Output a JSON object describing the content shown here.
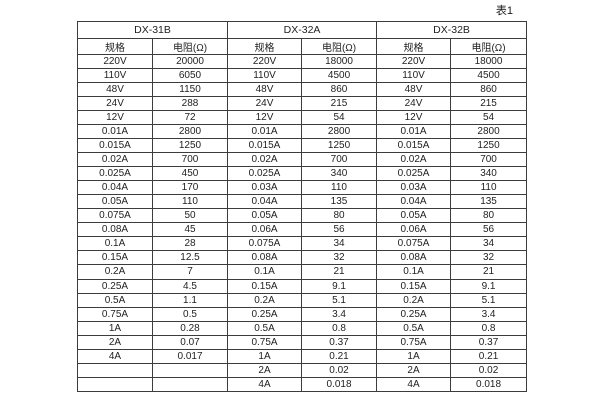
{
  "page": {
    "caption": "表1",
    "background": "#ffffff",
    "text_color": "#1f1f1f",
    "border_color": "#3c3c3c"
  },
  "table": {
    "body_row_count": 24,
    "groups": [
      {
        "name": "DX-31B",
        "columns": [
          "规格",
          "电阻(Ω)"
        ],
        "rows": [
          [
            "220V",
            "20000"
          ],
          [
            "110V",
            "6050"
          ],
          [
            "48V",
            "1150"
          ],
          [
            "24V",
            "288"
          ],
          [
            "12V",
            "72"
          ],
          [
            "0.01A",
            "2800"
          ],
          [
            "0.015A",
            "1250"
          ],
          [
            "0.02A",
            "700"
          ],
          [
            "0.025A",
            "450"
          ],
          [
            "0.04A",
            "170"
          ],
          [
            "0.05A",
            "110"
          ],
          [
            "0.075A",
            "50"
          ],
          [
            "0.08A",
            "45"
          ],
          [
            "0.1A",
            "28"
          ],
          [
            "0.15A",
            "12.5"
          ],
          [
            "0.2A",
            "7"
          ],
          [
            "0.25A",
            "4.5"
          ],
          [
            "0.5A",
            "1.1"
          ],
          [
            "0.75A",
            "0.5"
          ],
          [
            "1A",
            "0.28"
          ],
          [
            "2A",
            "0.07"
          ],
          [
            "4A",
            "0.017"
          ],
          [
            "",
            ""
          ],
          [
            "",
            ""
          ]
        ]
      },
      {
        "name": "DX-32A",
        "columns": [
          "规格",
          "电阻(Ω)"
        ],
        "rows": [
          [
            "220V",
            "18000"
          ],
          [
            "110V",
            "4500"
          ],
          [
            "48V",
            "860"
          ],
          [
            "24V",
            "215"
          ],
          [
            "12V",
            "54"
          ],
          [
            "0.01A",
            "2800"
          ],
          [
            "0.015A",
            "1250"
          ],
          [
            "0.02A",
            "700"
          ],
          [
            "0.025A",
            "340"
          ],
          [
            "0.03A",
            "110"
          ],
          [
            "0.04A",
            "135"
          ],
          [
            "0.05A",
            "80"
          ],
          [
            "0.06A",
            "56"
          ],
          [
            "0.075A",
            "34"
          ],
          [
            "0.08A",
            "32"
          ],
          [
            "0.1A",
            "21"
          ],
          [
            "0.15A",
            "9.1"
          ],
          [
            "0.2A",
            "5.1"
          ],
          [
            "0.25A",
            "3.4"
          ],
          [
            "0.5A",
            "0.8"
          ],
          [
            "0.75A",
            "0.37"
          ],
          [
            "1A",
            "0.21"
          ],
          [
            "2A",
            "0.02"
          ],
          [
            "4A",
            "0.018"
          ]
        ]
      },
      {
        "name": "DX-32B",
        "columns": [
          "规格",
          "电阻(Ω)"
        ],
        "rows": [
          [
            "220V",
            "18000"
          ],
          [
            "110V",
            "4500"
          ],
          [
            "48V",
            "860"
          ],
          [
            "24V",
            "215"
          ],
          [
            "12V",
            "54"
          ],
          [
            "0.01A",
            "2800"
          ],
          [
            "0.015A",
            "1250"
          ],
          [
            "0.02A",
            "700"
          ],
          [
            "0.025A",
            "340"
          ],
          [
            "0.03A",
            "110"
          ],
          [
            "0.04A",
            "135"
          ],
          [
            "0.05A",
            "80"
          ],
          [
            "0.06A",
            "56"
          ],
          [
            "0.075A",
            "34"
          ],
          [
            "0.08A",
            "32"
          ],
          [
            "0.1A",
            "21"
          ],
          [
            "0.15A",
            "9.1"
          ],
          [
            "0.2A",
            "5.1"
          ],
          [
            "0.25A",
            "3.4"
          ],
          [
            "0.5A",
            "0.8"
          ],
          [
            "0.75A",
            "0.37"
          ],
          [
            "1A",
            "0.21"
          ],
          [
            "2A",
            "0.02"
          ],
          [
            "4A",
            "0.018"
          ]
        ]
      }
    ]
  }
}
